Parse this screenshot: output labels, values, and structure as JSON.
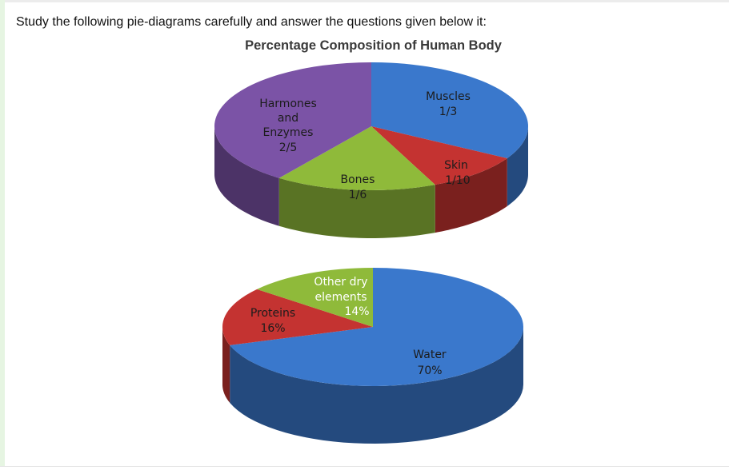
{
  "question_text": "Study the following pie-diagrams carefully and answer the questions given below it:",
  "colors": {
    "blue": "#3a78cc",
    "red": "#c43331",
    "green": "#8fba3a",
    "purple": "#7b53a6"
  },
  "chart_data": [
    {
      "type": "pie",
      "title": "Percentage Composition of Human Body",
      "slices": [
        {
          "name": "Muscles",
          "value_label": "1/3",
          "value": 0.3333,
          "color": "#3a78cc"
        },
        {
          "name": "Skin",
          "value_label": "1/10",
          "value": 0.1,
          "color": "#c43331"
        },
        {
          "name": "Bones",
          "value_label": "1/6",
          "value": 0.1667,
          "color": "#8fba3a"
        },
        {
          "name_lines": [
            "Harmones",
            "and",
            "Enzymes"
          ],
          "value_label": "2/5",
          "value": 0.4,
          "color": "#7b53a6"
        }
      ]
    },
    {
      "type": "pie",
      "slices": [
        {
          "name": "Water",
          "value_label": "70%",
          "value": 70,
          "color": "#3a78cc"
        },
        {
          "name": "Proteins",
          "value_label": "16%",
          "value": 16,
          "color": "#c43331"
        },
        {
          "name_lines": [
            "Other dry",
            "elements"
          ],
          "value_label": "14%",
          "value": 14,
          "color": "#8fba3a"
        }
      ]
    }
  ]
}
